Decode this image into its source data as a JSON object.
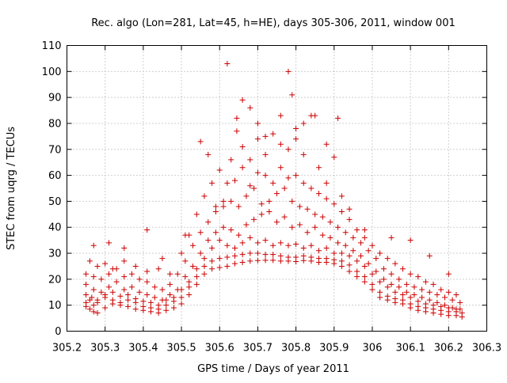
{
  "chart_data": {
    "type": "scatter",
    "title": "Rec. algo (Lon=281, Lat=45, h=HE), days 305-306, 2011, window 001",
    "xlabel": "GPS time / Days of year 2011",
    "ylabel": "STEC from uqrg / TECUs",
    "xlim": [
      305.2,
      306.3
    ],
    "ylim": [
      0,
      110
    ],
    "x_ticks": [
      305.2,
      305.3,
      305.4,
      305.5,
      305.6,
      305.7,
      305.8,
      305.9,
      306.0,
      306.1,
      306.2,
      306.3
    ],
    "x_tick_labels": [
      "305.2",
      "305.3",
      "305.4",
      "305.5",
      "305.6",
      "305.7",
      "305.8",
      "305.9",
      "306",
      "306.1",
      "306.2",
      "306.3"
    ],
    "y_ticks": [
      0,
      10,
      20,
      30,
      40,
      50,
      60,
      70,
      80,
      90,
      100,
      110
    ],
    "y_tick_labels": [
      "0",
      "10",
      "20",
      "30",
      "40",
      "50",
      "60",
      "70",
      "80",
      "90",
      "100",
      "110"
    ],
    "grid": true,
    "marker": "+",
    "color": "#cc0000",
    "series": [
      {
        "x": [
          305.25,
          305.26,
          305.27,
          305.28,
          305.3,
          305.32,
          305.34,
          305.36,
          305.38,
          305.4,
          305.42,
          305.44,
          305.46,
          305.48,
          305.5,
          305.52,
          305.54,
          305.56,
          305.58,
          305.6,
          305.62,
          305.64,
          305.66,
          305.68,
          305.7,
          305.72,
          305.74,
          305.76,
          305.78,
          305.8,
          305.82,
          305.84,
          305.86,
          305.88,
          305.9,
          305.92,
          305.94,
          305.96,
          305.98,
          306.0,
          306.02,
          306.04,
          306.06,
          306.08,
          306.1,
          306.12,
          306.14,
          306.16,
          306.18,
          306.2,
          306.22,
          306.235
        ],
        "y": [
          9.5,
          8.5,
          7.5,
          7,
          9,
          10.5,
          10,
          9.5,
          8.5,
          8,
          7.5,
          7,
          8,
          9,
          10.5,
          14,
          18,
          22,
          24,
          24.5,
          25,
          26,
          26.5,
          27,
          27.2,
          27.3,
          27.3,
          27,
          27,
          26.8,
          27.2,
          27,
          26.5,
          26.5,
          26,
          25,
          23,
          21,
          19,
          16,
          13,
          12,
          11,
          10.5,
          9,
          8,
          7.5,
          7,
          6.5,
          6,
          6,
          5.5
        ]
      },
      {
        "x": [
          305.25,
          305.26,
          305.27,
          305.28,
          305.3,
          305.32,
          305.34,
          305.36,
          305.38,
          305.4,
          305.42,
          305.44,
          305.46,
          305.48,
          305.5,
          305.52,
          305.54,
          305.56,
          305.58,
          305.6,
          305.62,
          305.64,
          305.66,
          305.68,
          305.7,
          305.72,
          305.74,
          305.76,
          305.78,
          305.8,
          305.82,
          305.84,
          305.86,
          305.88,
          305.9,
          305.92,
          305.94,
          305.96,
          305.98,
          306.0,
          306.02,
          306.04,
          306.06,
          306.08,
          306.1,
          306.12,
          306.14,
          306.16,
          306.18,
          306.2,
          306.22,
          306.235
        ],
        "y": [
          11,
          12,
          10,
          11,
          13,
          12,
          11,
          12,
          11,
          9.5,
          9,
          8.5,
          10,
          11.5,
          13,
          17,
          21,
          25,
          27,
          28,
          28.5,
          29,
          29.5,
          30,
          30,
          29.5,
          29.5,
          29,
          28.5,
          28.5,
          29,
          28.5,
          28,
          28,
          27.5,
          27,
          25.5,
          23,
          21,
          18,
          15,
          13.5,
          12.5,
          12,
          10.5,
          9.5,
          9,
          8.5,
          8,
          7.5,
          7.5,
          7
        ]
      },
      {
        "x": [
          305.25,
          305.265,
          305.28,
          305.3,
          305.32,
          305.34,
          305.36,
          305.38,
          305.4,
          305.42,
          305.44,
          305.46,
          305.48,
          305.5,
          305.52,
          305.54,
          305.56,
          305.58,
          305.6,
          305.62,
          305.64,
          305.66,
          305.68,
          305.7,
          305.72,
          305.74,
          305.76,
          305.78,
          305.8,
          305.82,
          305.84,
          305.86,
          305.88,
          305.9,
          305.92,
          305.94,
          305.96,
          305.98,
          306.0,
          306.02,
          306.04,
          306.06,
          306.08,
          306.1,
          306.12,
          306.14,
          306.16,
          306.18,
          306.2,
          306.22
        ],
        "y": [
          14,
          13,
          12,
          14,
          15,
          13.5,
          14,
          12.5,
          11.5,
          11,
          10,
          12,
          13,
          16,
          19,
          24,
          28,
          32,
          35,
          33,
          32,
          34,
          36,
          34,
          35,
          33,
          34,
          33,
          33.5,
          32,
          33,
          31,
          32,
          30,
          30,
          29,
          27,
          25,
          22,
          19,
          17,
          15,
          14,
          13,
          11.5,
          10.5,
          10,
          9.5,
          9,
          8.5
        ]
      },
      {
        "x": [
          305.25,
          305.27,
          305.29,
          305.31,
          305.33,
          305.35,
          305.37,
          305.39,
          305.41,
          305.43,
          305.45,
          305.47,
          305.49,
          305.51,
          305.53,
          305.55,
          305.57,
          305.59,
          305.61,
          305.63,
          305.65,
          305.67,
          305.69,
          305.71,
          305.73,
          305.75,
          305.77,
          305.79,
          305.81,
          305.83,
          305.85,
          305.87,
          305.89,
          305.91,
          305.93,
          305.95,
          305.97,
          305.99,
          306.01,
          306.03,
          306.05,
          306.07,
          306.09,
          306.11,
          306.13,
          306.15,
          306.17,
          306.19,
          306.21,
          306.23
        ],
        "y": [
          18,
          16,
          15,
          17,
          19,
          16,
          17,
          15,
          14,
          13,
          12,
          14,
          16,
          21,
          25,
          30,
          35,
          38,
          40,
          39,
          37,
          41,
          43,
          45,
          46,
          42,
          44,
          40,
          41,
          38,
          40,
          37,
          36,
          34,
          33,
          31,
          29,
          26,
          23,
          20,
          18,
          17,
          15,
          14,
          13,
          12,
          11,
          10,
          9,
          8.5
        ]
      },
      {
        "x": [
          305.25,
          305.27,
          305.29,
          305.31,
          305.33,
          305.35,
          305.37,
          305.39,
          305.41,
          305.43,
          305.45,
          305.47,
          305.49,
          305.51,
          305.53,
          305.55,
          305.57,
          305.59,
          305.61,
          305.63,
          305.65,
          305.67,
          305.69,
          305.71,
          305.73,
          305.75,
          305.77,
          305.79,
          305.81,
          305.83,
          305.85,
          305.87,
          305.89,
          305.91,
          305.93,
          305.95,
          305.97,
          305.99,
          306.01,
          306.03,
          306.05,
          306.07,
          306.09,
          306.11,
          306.13,
          306.15,
          306.17,
          306.19,
          306.21,
          306.23
        ],
        "y": [
          22,
          21,
          20,
          22,
          24,
          21,
          22,
          20,
          19,
          17,
          16,
          18,
          22,
          27,
          33,
          38,
          42,
          46,
          48,
          50,
          48,
          52,
          55,
          49,
          50,
          53,
          55,
          50,
          48,
          47,
          45,
          44,
          42,
          40,
          38,
          36,
          34,
          31,
          28,
          24,
          22,
          20,
          18,
          17,
          16,
          15,
          14,
          13,
          12,
          11
        ]
      },
      {
        "x": [
          305.26,
          305.28,
          305.3,
          305.32,
          305.35,
          305.38,
          305.41,
          305.44,
          305.47,
          305.5,
          305.52,
          305.54,
          305.56,
          305.58,
          305.6,
          305.62,
          305.64,
          305.66,
          305.68,
          305.7,
          305.72,
          305.74,
          305.76,
          305.78,
          305.8,
          305.82,
          305.84,
          305.86,
          305.88,
          305.9,
          305.92,
          305.94,
          305.96,
          305.98,
          306.0,
          306.02,
          306.04,
          306.06,
          306.08,
          306.1,
          306.12,
          306.14,
          306.16,
          306.18,
          306.2,
          306.22
        ],
        "y": [
          27,
          25,
          26,
          24,
          27,
          25,
          23,
          24,
          22,
          30,
          37,
          45,
          52,
          57,
          62,
          57,
          58,
          63,
          56,
          61,
          60,
          57,
          63,
          59,
          60,
          57,
          55,
          53,
          51,
          49,
          46,
          43,
          39,
          36,
          33,
          30,
          28,
          26,
          24,
          22,
          21,
          19,
          18,
          16,
          15,
          14
        ]
      },
      {
        "x": [
          305.27,
          305.31,
          305.35,
          305.41,
          305.45,
          305.51,
          305.55,
          305.57,
          305.59,
          305.61,
          305.63,
          305.645,
          305.66,
          305.68,
          305.7,
          305.72,
          305.74,
          305.76,
          305.78,
          305.8,
          305.82,
          305.84,
          305.86,
          305.88,
          305.9,
          305.92,
          305.94,
          305.98,
          306.05,
          306.1,
          306.15,
          306.2
        ],
        "y": [
          33,
          34,
          32,
          39,
          28,
          37,
          73,
          68,
          48,
          50,
          66,
          77,
          71,
          66,
          74,
          68,
          76,
          72,
          70,
          74,
          68,
          83,
          63,
          57,
          67,
          52,
          47,
          39,
          36,
          35,
          29,
          22
        ]
      },
      {
        "x": [
          305.62,
          305.645,
          305.66,
          305.68,
          305.7,
          305.72,
          305.76,
          305.78,
          305.79,
          305.8,
          305.82,
          305.85,
          305.88,
          305.91
        ],
        "y": [
          103,
          82,
          89,
          86,
          80,
          75,
          83,
          100,
          91,
          78,
          80,
          83,
          72,
          82
        ]
      }
    ]
  }
}
